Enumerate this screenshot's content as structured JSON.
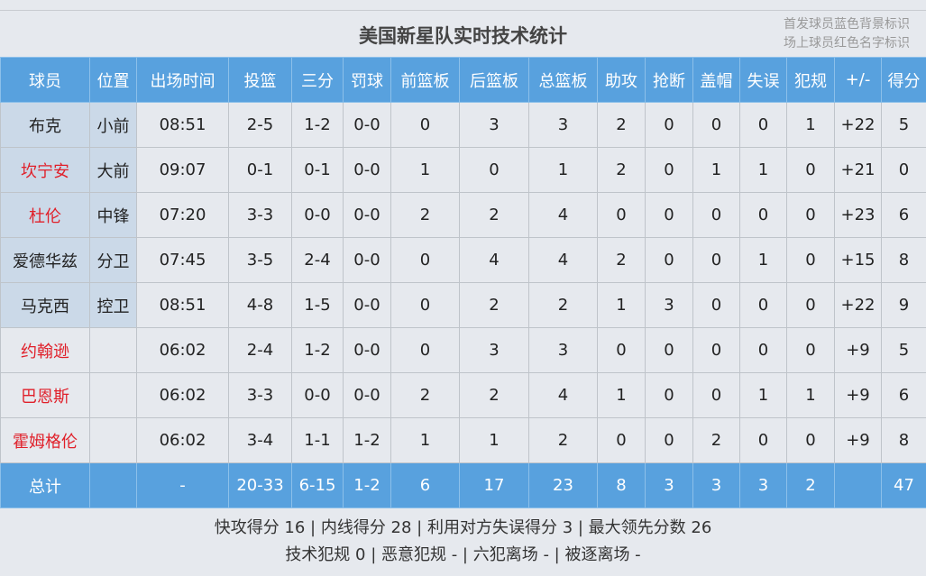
{
  "title": "美国新星队实时技术统计",
  "legend": [
    "首发球员蓝色背景标识",
    "场上球员红色名字标识"
  ],
  "columns": [
    "球员",
    "位置",
    "出场时间",
    "投篮",
    "三分",
    "罚球",
    "前篮板",
    "后篮板",
    "总篮板",
    "助攻",
    "抢断",
    "盖帽",
    "失误",
    "犯规",
    "+/-",
    "得分"
  ],
  "rows": [
    {
      "starter": true,
      "on_court": false,
      "cells": [
        "布克",
        "小前",
        "08:51",
        "2-5",
        "1-2",
        "0-0",
        "0",
        "3",
        "3",
        "2",
        "0",
        "0",
        "0",
        "1",
        "+22",
        "5"
      ]
    },
    {
      "starter": true,
      "on_court": true,
      "cells": [
        "坎宁安",
        "大前",
        "09:07",
        "0-1",
        "0-1",
        "0-0",
        "1",
        "0",
        "1",
        "2",
        "0",
        "1",
        "1",
        "0",
        "+21",
        "0"
      ]
    },
    {
      "starter": true,
      "on_court": true,
      "cells": [
        "杜伦",
        "中锋",
        "07:20",
        "3-3",
        "0-0",
        "0-0",
        "2",
        "2",
        "4",
        "0",
        "0",
        "0",
        "0",
        "0",
        "+23",
        "6"
      ]
    },
    {
      "starter": true,
      "on_court": false,
      "cells": [
        "爱德华兹",
        "分卫",
        "07:45",
        "3-5",
        "2-4",
        "0-0",
        "0",
        "4",
        "4",
        "2",
        "0",
        "0",
        "1",
        "0",
        "+15",
        "8"
      ]
    },
    {
      "starter": true,
      "on_court": false,
      "cells": [
        "马克西",
        "控卫",
        "08:51",
        "4-8",
        "1-5",
        "0-0",
        "0",
        "2",
        "2",
        "1",
        "3",
        "0",
        "0",
        "0",
        "+22",
        "9"
      ]
    },
    {
      "starter": false,
      "on_court": true,
      "cells": [
        "约翰逊",
        "",
        "06:02",
        "2-4",
        "1-2",
        "0-0",
        "0",
        "3",
        "3",
        "0",
        "0",
        "0",
        "0",
        "0",
        "+9",
        "5"
      ]
    },
    {
      "starter": false,
      "on_court": true,
      "cells": [
        "巴恩斯",
        "",
        "06:02",
        "3-3",
        "0-0",
        "0-0",
        "2",
        "2",
        "4",
        "1",
        "0",
        "0",
        "1",
        "1",
        "+9",
        "6"
      ]
    },
    {
      "starter": false,
      "on_court": true,
      "cells": [
        "霍姆格伦",
        "",
        "06:02",
        "3-4",
        "1-1",
        "1-2",
        "1",
        "1",
        "2",
        "0",
        "0",
        "2",
        "0",
        "0",
        "+9",
        "8"
      ]
    }
  ],
  "total": [
    "总计",
    "",
    "-",
    "20-33",
    "6-15",
    "1-2",
    "6",
    "17",
    "23",
    "8",
    "3",
    "3",
    "3",
    "2",
    "",
    "47"
  ],
  "footer": [
    "快攻得分 16 | 内线得分 28 | 利用对方失误得分 3 | 最大领先分数 26",
    "技术犯规 0 | 恶意犯规 - | 六犯离场 - | 被逐离场 -"
  ]
}
